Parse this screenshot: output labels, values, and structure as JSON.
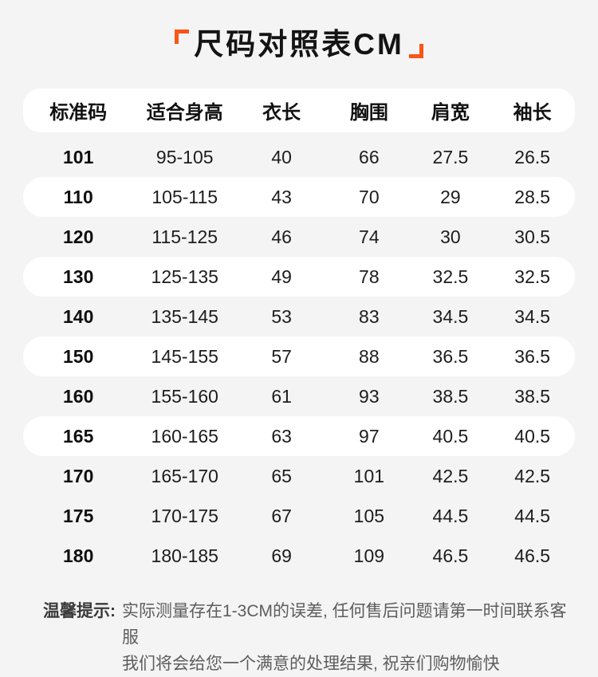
{
  "title": {
    "text": "尺码对照表CM"
  },
  "table": {
    "headers": [
      "标准码",
      "适合身高",
      "衣长",
      "胸围",
      "肩宽",
      "袖长"
    ],
    "rows": [
      {
        "cells": [
          "101",
          "95-105",
          "40",
          "66",
          "27.5",
          "26.5"
        ],
        "highlight": false
      },
      {
        "cells": [
          "110",
          "105-115",
          "43",
          "70",
          "29",
          "28.5"
        ],
        "highlight": true
      },
      {
        "cells": [
          "120",
          "115-125",
          "46",
          "74",
          "30",
          "30.5"
        ],
        "highlight": false
      },
      {
        "cells": [
          "130",
          "125-135",
          "49",
          "78",
          "32.5",
          "32.5"
        ],
        "highlight": true
      },
      {
        "cells": [
          "140",
          "135-145",
          "53",
          "83",
          "34.5",
          "34.5"
        ],
        "highlight": false
      },
      {
        "cells": [
          "150",
          "145-155",
          "57",
          "88",
          "36.5",
          "36.5"
        ],
        "highlight": true
      },
      {
        "cells": [
          "160",
          "155-160",
          "61",
          "93",
          "38.5",
          "38.5"
        ],
        "highlight": false
      },
      {
        "cells": [
          "165",
          "160-165",
          "63",
          "97",
          "40.5",
          "40.5"
        ],
        "highlight": true
      },
      {
        "cells": [
          "170",
          "165-170",
          "65",
          "101",
          "42.5",
          "42.5"
        ],
        "highlight": false
      },
      {
        "cells": [
          "175",
          "170-175",
          "67",
          "105",
          "44.5",
          "44.5"
        ],
        "highlight": false
      },
      {
        "cells": [
          "180",
          "180-185",
          "69",
          "109",
          "46.5",
          "46.5"
        ],
        "highlight": false
      }
    ]
  },
  "note": {
    "label": "温馨提示:",
    "line1": "实际测量存在1-3CM的误差, 任何售后问题请第一时间联系客服",
    "line2": "我们将会给您一个满意的处理结果, 祝亲们购物愉快"
  },
  "colors": {
    "accent_orange": "#fa5516",
    "page_bg": "#f4f4f5",
    "row_white": "#ffffff",
    "text_dark": "#141414",
    "note_gray": "#5d5d5d"
  }
}
